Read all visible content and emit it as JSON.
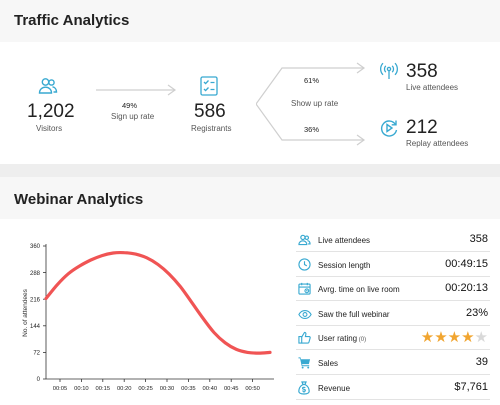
{
  "traffic": {
    "title": "Traffic Analytics",
    "visitors": {
      "value": "1,202",
      "label": "Visitors"
    },
    "signup": {
      "pct": "49%",
      "label": "Sign up rate"
    },
    "registrants": {
      "value": "586",
      "label": "Registrants"
    },
    "showup": {
      "pct_live": "61%",
      "label": "Show up rate",
      "pct_replay": "36%"
    },
    "live": {
      "value": "358",
      "label": "Live attendees"
    },
    "replay": {
      "value": "212",
      "label": "Replay attendees"
    }
  },
  "webinar": {
    "title": "Webinar Analytics",
    "metrics": [
      {
        "icon": "attendees-icon",
        "label": "Live attendees",
        "value": "358"
      },
      {
        "icon": "clock-icon",
        "label": "Session length",
        "value": "00:49:15"
      },
      {
        "icon": "calendar-icon",
        "label": "Avrg. time on live room",
        "value": "00:20:13"
      },
      {
        "icon": "eye-icon",
        "label": "Saw the full webinar",
        "value": "23%"
      },
      {
        "icon": "thumbs-up-icon",
        "label": "User rating",
        "count": "(0)",
        "stars": 4,
        "stars_max": 5
      },
      {
        "icon": "cart-icon",
        "label": "Sales",
        "value": "39"
      },
      {
        "icon": "money-bag-icon",
        "label": "Revenue",
        "value": "$7,761"
      }
    ]
  },
  "colors": {
    "accent": "#38a9d1",
    "curve": "#f05454",
    "star": "#f1a530"
  },
  "chart_data": {
    "type": "line",
    "ylabel": "No. of attendees",
    "xlabel": "",
    "yticks": [
      "0",
      "72",
      "144",
      "216",
      "288",
      "360"
    ],
    "xticks": [
      "00:05",
      "00:10",
      "00:15",
      "00:20",
      "00:25",
      "00:30",
      "00:35",
      "00:40",
      "00:45",
      "00:50"
    ],
    "ylim": [
      0,
      360
    ],
    "xlim": [
      0,
      50
    ],
    "grid": false,
    "series": [
      {
        "x": [
          0,
          2.5,
          5,
          7.5,
          10,
          12.5,
          15,
          17.5,
          20,
          22.5,
          25,
          27.5,
          30,
          32.5,
          35,
          37.5,
          40,
          42.5,
          45,
          47.5,
          50
        ],
        "y": [
          218,
          255,
          285,
          306,
          322,
          334,
          341,
          342,
          338,
          328,
          310,
          284,
          250,
          208,
          165,
          126,
          98,
          80,
          72,
          70,
          72
        ]
      }
    ]
  }
}
